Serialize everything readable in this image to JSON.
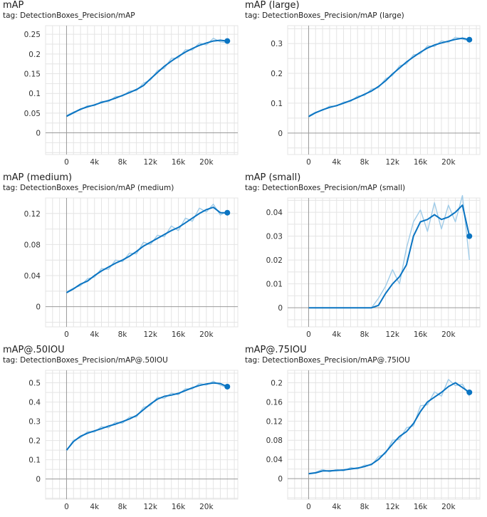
{
  "charts": [
    {
      "title": "mAP",
      "tag": "tag: DetectionBoxes_Precision/mAP"
    },
    {
      "title": "mAP (large)",
      "tag": "tag: DetectionBoxes_Precision/mAP (large)"
    },
    {
      "title": "mAP (medium)",
      "tag": "tag: DetectionBoxes_Precision/mAP (medium)"
    },
    {
      "title": "mAP (small)",
      "tag": "tag: DetectionBoxes_Precision/mAP (small)"
    },
    {
      "title": "mAP@.50IOU",
      "tag": "tag: DetectionBoxes_Precision/mAP@.50IOU"
    },
    {
      "title": "mAP@.75IOU",
      "tag": "tag: DetectionBoxes_Precision/mAP@.75IOU"
    }
  ],
  "colors": {
    "smoothed": "#0a74c2",
    "raw": "#9fcbe8",
    "grid": "#e4e4e4",
    "axis": "#9a9a9a",
    "dot": "#0a74c2"
  },
  "chart_data": [
    {
      "type": "line",
      "title": "mAP",
      "xlabel": "",
      "ylabel": "",
      "xlim": [
        -3000,
        24500
      ],
      "ylim": [
        -0.055,
        0.272
      ],
      "xticks": [
        0,
        4000,
        8000,
        12000,
        16000,
        20000
      ],
      "xtick_labels": [
        "0",
        "4k",
        "8k",
        "12k",
        "16k",
        "20k"
      ],
      "yticks": [
        0,
        0.05,
        0.1,
        0.15,
        0.2,
        0.25
      ],
      "ytick_labels": [
        "0",
        "0.05",
        "0.1",
        "0.15",
        "0.2",
        "0.25"
      ],
      "grid": true,
      "x": [
        0,
        1000,
        2000,
        3000,
        4000,
        5000,
        6000,
        7000,
        8000,
        9000,
        10000,
        11000,
        12000,
        13000,
        14000,
        15000,
        16000,
        17000,
        18000,
        19000,
        20000,
        21000,
        22000,
        23000
      ],
      "smoothed": [
        0.042,
        0.051,
        0.06,
        0.066,
        0.071,
        0.077,
        0.082,
        0.088,
        0.095,
        0.102,
        0.11,
        0.12,
        0.137,
        0.153,
        0.169,
        0.182,
        0.194,
        0.205,
        0.214,
        0.222,
        0.228,
        0.233,
        0.235,
        0.233
      ],
      "raw": [
        0.044,
        0.053,
        0.058,
        0.069,
        0.069,
        0.08,
        0.079,
        0.092,
        0.093,
        0.106,
        0.107,
        0.126,
        0.134,
        0.158,
        0.164,
        0.189,
        0.19,
        0.211,
        0.21,
        0.228,
        0.223,
        0.24,
        0.231,
        0.229
      ]
    },
    {
      "type": "line",
      "title": "mAP (large)",
      "xlabel": "",
      "ylabel": "",
      "xlim": [
        -3000,
        24500
      ],
      "ylim": [
        -0.072,
        0.36
      ],
      "xticks": [
        0,
        4000,
        8000,
        12000,
        16000,
        20000
      ],
      "xtick_labels": [
        "0",
        "4k",
        "8k",
        "12k",
        "16k",
        "20k"
      ],
      "yticks": [
        0,
        0.1,
        0.2,
        0.3
      ],
      "ytick_labels": [
        "0",
        "0.1",
        "0.2",
        "0.3"
      ],
      "grid": true,
      "x": [
        0,
        1000,
        2000,
        3000,
        4000,
        5000,
        6000,
        7000,
        8000,
        9000,
        10000,
        11000,
        12000,
        13000,
        14000,
        15000,
        16000,
        17000,
        18000,
        19000,
        20000,
        21000,
        22000,
        23000
      ],
      "smoothed": [
        0.055,
        0.068,
        0.078,
        0.086,
        0.092,
        0.1,
        0.109,
        0.119,
        0.13,
        0.141,
        0.156,
        0.175,
        0.198,
        0.218,
        0.238,
        0.255,
        0.271,
        0.285,
        0.295,
        0.302,
        0.308,
        0.314,
        0.318,
        0.313
      ],
      "raw": [
        0.058,
        0.07,
        0.076,
        0.09,
        0.09,
        0.104,
        0.106,
        0.124,
        0.126,
        0.147,
        0.152,
        0.182,
        0.193,
        0.225,
        0.232,
        0.262,
        0.266,
        0.292,
        0.29,
        0.309,
        0.304,
        0.321,
        0.315,
        0.309
      ]
    },
    {
      "type": "line",
      "title": "mAP (medium)",
      "xlabel": "",
      "ylabel": "",
      "xlim": [
        -3000,
        24500
      ],
      "ylim": [
        -0.026,
        0.14
      ],
      "xticks": [
        0,
        4000,
        8000,
        12000,
        16000,
        20000
      ],
      "xtick_labels": [
        "0",
        "4k",
        "8k",
        "12k",
        "16k",
        "20k"
      ],
      "yticks": [
        0,
        0.04,
        0.08,
        0.12
      ],
      "ytick_labels": [
        "0",
        "0.04",
        "0.08",
        "0.12"
      ],
      "grid": true,
      "x": [
        0,
        1000,
        2000,
        3000,
        4000,
        5000,
        6000,
        7000,
        8000,
        9000,
        10000,
        11000,
        12000,
        13000,
        14000,
        15000,
        16000,
        17000,
        18000,
        19000,
        20000,
        21000,
        22000,
        23000
      ],
      "smoothed": [
        0.018,
        0.023,
        0.029,
        0.033,
        0.04,
        0.046,
        0.051,
        0.056,
        0.06,
        0.065,
        0.071,
        0.078,
        0.083,
        0.088,
        0.093,
        0.098,
        0.102,
        0.108,
        0.114,
        0.12,
        0.125,
        0.128,
        0.121,
        0.121
      ],
      "raw": [
        0.019,
        0.024,
        0.027,
        0.036,
        0.038,
        0.049,
        0.048,
        0.06,
        0.058,
        0.069,
        0.068,
        0.083,
        0.08,
        0.092,
        0.09,
        0.104,
        0.098,
        0.114,
        0.11,
        0.127,
        0.122,
        0.132,
        0.118,
        0.123
      ]
    },
    {
      "type": "line",
      "title": "mAP (small)",
      "xlabel": "",
      "ylabel": "",
      "xlim": [
        -3000,
        24500
      ],
      "ylim": [
        -0.008,
        0.046
      ],
      "xticks": [
        0,
        4000,
        8000,
        12000,
        16000,
        20000
      ],
      "xtick_labels": [
        "0",
        "4k",
        "8k",
        "12k",
        "16k",
        "20k"
      ],
      "yticks": [
        0,
        0.01,
        0.02,
        0.03,
        0.04
      ],
      "ytick_labels": [
        "0",
        "0.01",
        "0.02",
        "0.03",
        "0.04"
      ],
      "grid": true,
      "x": [
        0,
        1000,
        2000,
        3000,
        4000,
        5000,
        6000,
        7000,
        8000,
        9000,
        10000,
        11000,
        12000,
        13000,
        14000,
        15000,
        16000,
        17000,
        18000,
        19000,
        20000,
        21000,
        22000,
        23000
      ],
      "smoothed": [
        0,
        0,
        0,
        0,
        0,
        0,
        0,
        0,
        0,
        0,
        0.001,
        0.006,
        0.01,
        0.013,
        0.018,
        0.03,
        0.036,
        0.037,
        0.039,
        0.037,
        0.038,
        0.04,
        0.043,
        0.03
      ],
      "raw": [
        0,
        0,
        0,
        0,
        0,
        0,
        0,
        0,
        0,
        0,
        0.004,
        0.009,
        0.016,
        0.01,
        0.025,
        0.036,
        0.041,
        0.032,
        0.044,
        0.033,
        0.043,
        0.036,
        0.047,
        0.02
      ]
    },
    {
      "type": "line",
      "title": "mAP@.50IOU",
      "xlabel": "",
      "ylabel": "",
      "xlim": [
        -3000,
        24500
      ],
      "ylim": [
        -0.105,
        0.565
      ],
      "xticks": [
        0,
        4000,
        8000,
        12000,
        16000,
        20000
      ],
      "xtick_labels": [
        "0",
        "4k",
        "8k",
        "12k",
        "16k",
        "20k"
      ],
      "yticks": [
        0,
        0.1,
        0.2,
        0.3,
        0.4,
        0.5
      ],
      "ytick_labels": [
        "0",
        "0.1",
        "0.2",
        "0.3",
        "0.4",
        "0.5"
      ],
      "grid": true,
      "x": [
        0,
        1000,
        2000,
        3000,
        4000,
        5000,
        6000,
        7000,
        8000,
        9000,
        10000,
        11000,
        12000,
        13000,
        14000,
        15000,
        16000,
        17000,
        18000,
        19000,
        20000,
        21000,
        22000,
        23000
      ],
      "smoothed": [
        0.15,
        0.195,
        0.222,
        0.238,
        0.25,
        0.262,
        0.275,
        0.285,
        0.298,
        0.312,
        0.33,
        0.36,
        0.39,
        0.415,
        0.43,
        0.436,
        0.445,
        0.46,
        0.474,
        0.486,
        0.494,
        0.499,
        0.496,
        0.48
      ],
      "raw": [
        0.148,
        0.202,
        0.215,
        0.246,
        0.244,
        0.272,
        0.266,
        0.295,
        0.29,
        0.322,
        0.322,
        0.372,
        0.382,
        0.424,
        0.42,
        0.446,
        0.438,
        0.469,
        0.468,
        0.497,
        0.488,
        0.508,
        0.488,
        0.475
      ]
    },
    {
      "type": "line",
      "title": "mAP@.75IOU",
      "xlabel": "",
      "ylabel": "",
      "xlim": [
        -3000,
        24500
      ],
      "ylim": [
        -0.043,
        0.226
      ],
      "xticks": [
        0,
        4000,
        8000,
        12000,
        16000,
        20000
      ],
      "xtick_labels": [
        "0",
        "4k",
        "8k",
        "12k",
        "16k",
        "20k"
      ],
      "yticks": [
        0,
        0.04,
        0.08,
        0.12,
        0.16,
        0.2
      ],
      "ytick_labels": [
        "0",
        "0.04",
        "0.08",
        "0.12",
        "0.16",
        "0.2"
      ],
      "grid": true,
      "x": [
        0,
        1000,
        2000,
        3000,
        4000,
        5000,
        6000,
        7000,
        8000,
        9000,
        10000,
        11000,
        12000,
        13000,
        14000,
        15000,
        16000,
        17000,
        18000,
        19000,
        20000,
        21000,
        22000,
        23000
      ],
      "smoothed": [
        0.01,
        0.012,
        0.016,
        0.016,
        0.017,
        0.018,
        0.02,
        0.022,
        0.025,
        0.03,
        0.04,
        0.055,
        0.072,
        0.088,
        0.098,
        0.115,
        0.14,
        0.16,
        0.17,
        0.18,
        0.192,
        0.2,
        0.19,
        0.18
      ],
      "raw": [
        0.011,
        0.013,
        0.019,
        0.014,
        0.019,
        0.016,
        0.023,
        0.02,
        0.028,
        0.028,
        0.046,
        0.052,
        0.08,
        0.082,
        0.106,
        0.11,
        0.152,
        0.154,
        0.181,
        0.172,
        0.207,
        0.194,
        0.197,
        0.172
      ]
    }
  ]
}
